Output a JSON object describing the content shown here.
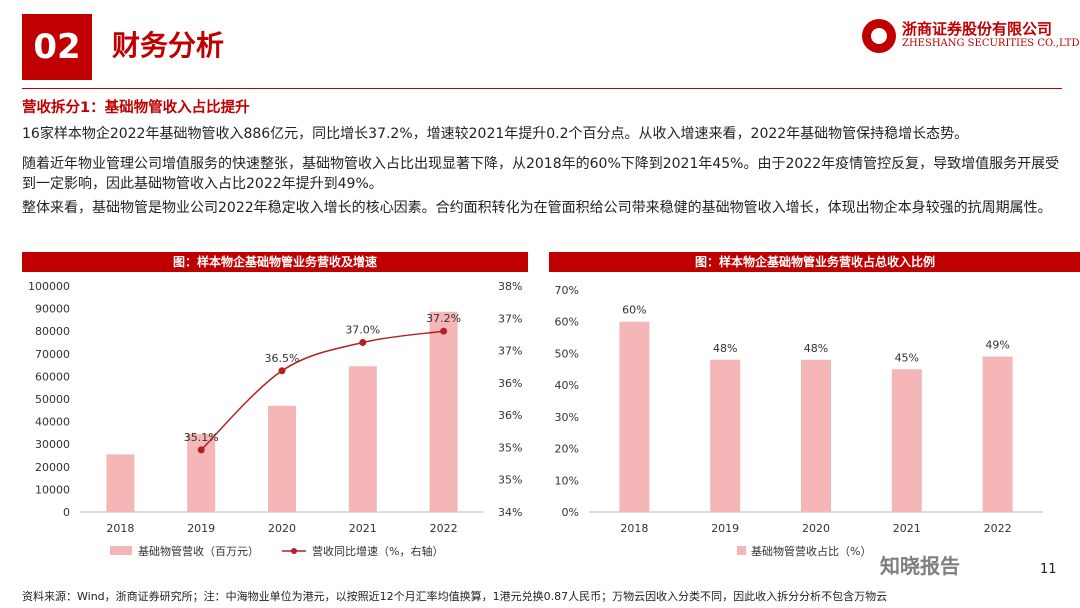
{
  "header": {
    "section_number": "02",
    "section_title": "财务分析",
    "logo_cn": "浙商证券股份有限公司",
    "logo_en": "ZHESHANG SECURITIES CO.,LTD"
  },
  "subheading": "营收拆分1：基础物管收入占比提升",
  "paragraphs": [
    "16家样本物企2022年基础物管收入886亿元，同比增长37.2%，增速较2021年提升0.2个百分点。从收入增速来看，2022年基础物管保持稳增长态势。",
    "随着近年物业管理公司增值服务的快速整张，基础物管收入占比出现显著下降，从2018年的60%下降到2021年45%。由于2022年疫情管控反复，导致增值服务开展受到一定影响，因此基础物管收入占比2022年提升到49%。",
    "整体来看，基础物管是物业公司2022年稳定收入增长的核心因素。合约面积转化为在管面积给公司带来稳健的基础物管收入增长，体现出物企本身较强的抗周期属性。"
  ],
  "chart_titles": [
    "图：样本物企基础物管业务营收及增速",
    "图：样本物企基础物管业务营收占总收入比例"
  ],
  "chart_data": [
    {
      "type": "bar",
      "categories": [
        "2018",
        "2019",
        "2020",
        "2021",
        "2022"
      ],
      "series": [
        {
          "name": "基础物管营收（百万元）",
          "type": "bar",
          "axis": "left",
          "values": [
            25500,
            34500,
            47000,
            64500,
            88600
          ],
          "color": "#f4b6b6"
        },
        {
          "name": "营收同比增速（%，右轴）",
          "type": "line",
          "axis": "right",
          "values": [
            null,
            35.1,
            36.5,
            37.0,
            37.2
          ],
          "labels": [
            "",
            "35.1%",
            "36.5%",
            "37.0%",
            "37.2%"
          ],
          "color": "#b22222"
        }
      ],
      "ylim": [
        0,
        100000
      ],
      "yticks": [
        "100000",
        "90000",
        "80000",
        "70000",
        "60000",
        "50000",
        "40000",
        "30000",
        "20000",
        "10000",
        "0"
      ],
      "y2lim": [
        34.0,
        38.0
      ],
      "y2ticks": [
        "38%",
        "37%",
        "37%",
        "36%",
        "36%",
        "35%",
        "35%",
        "34%"
      ],
      "legend_position": "bottom"
    },
    {
      "type": "bar",
      "categories": [
        "2018",
        "2019",
        "2020",
        "2021",
        "2022"
      ],
      "series": [
        {
          "name": "基础物管营收占比（%）",
          "values": [
            60,
            48,
            48,
            45,
            49
          ],
          "labels": [
            "60%",
            "48%",
            "48%",
            "45%",
            "49%"
          ],
          "color": "#f4b6b6"
        }
      ],
      "ylim": [
        0,
        70
      ],
      "yticks": [
        "70%",
        "60%",
        "50%",
        "40%",
        "30%",
        "20%",
        "10%",
        "0%"
      ],
      "legend_position": "bottom"
    }
  ],
  "footer": "资料来源：Wind，浙商证券研究所；注：中海物业单位为港元，以按照近12个月汇率均值换算，1港元兑换0.87人民币；万物云因收入分类不同，因此收入拆分分析不包含万物云",
  "page_number": "11",
  "watermark": "知晓报告"
}
